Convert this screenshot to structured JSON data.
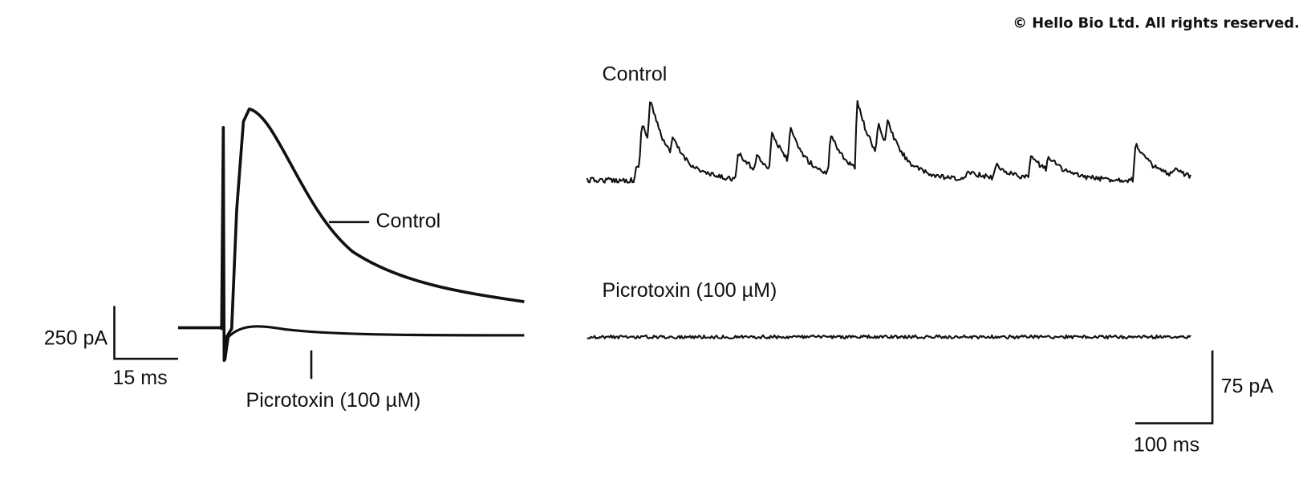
{
  "copyright": "© Hello Bio Ltd. All rights reserved.",
  "left_panel": {
    "control_label": "Control",
    "picrotoxin_label": "Picrotoxin (100 µM)",
    "scale_y": "250 pA",
    "scale_x": "15 ms"
  },
  "right_panel": {
    "control_label": "Control",
    "picrotoxin_label": "Picrotoxin (100 µM)",
    "scale_y": "75 pA",
    "scale_x": "100 ms"
  }
}
